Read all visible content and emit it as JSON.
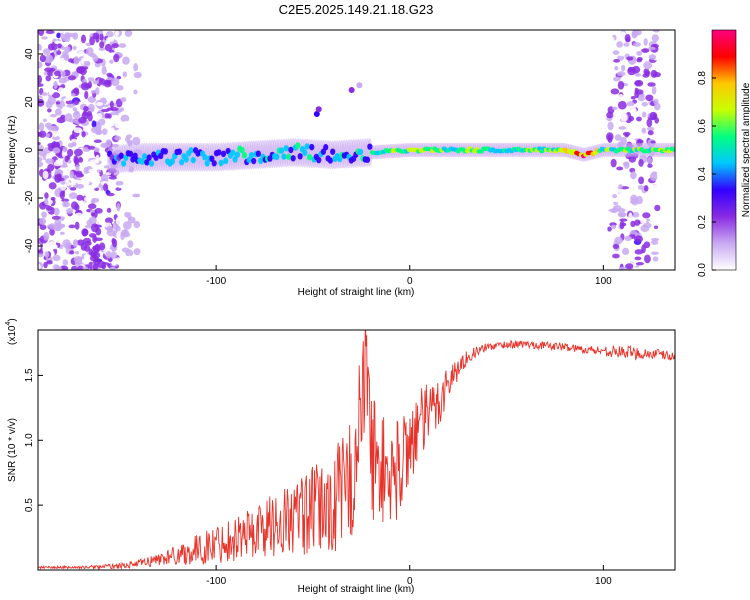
{
  "title": "C2E5.2025.149.21.18.G23",
  "colorbar": {
    "label": "Normalized spectral amplitude",
    "ticks": [
      "0.0",
      "0.2",
      "0.4",
      "0.6",
      "0.8"
    ],
    "tick_values": [
      0.0,
      0.2,
      0.4,
      0.6,
      0.8
    ],
    "range": [
      0.0,
      1.0
    ],
    "colors": [
      "#ffffff",
      "#c9a9f2",
      "#8a2be2",
      "#3300ff",
      "#00c8ff",
      "#00ff80",
      "#c8ff00",
      "#ffc800",
      "#ff0000",
      "#ff0080"
    ]
  },
  "chart_data": [
    {
      "type": "heatmap",
      "xlabel": "Height of straight line (km)",
      "ylabel": "Frequency (Hz)",
      "xlim": [
        -192,
        137
      ],
      "ylim": [
        -50,
        50
      ],
      "x_ticks": [
        "-100",
        "0",
        "100"
      ],
      "x_tick_values": [
        -100,
        0,
        100
      ],
      "y_ticks": [
        "-40",
        "-20",
        "0",
        "20",
        "40"
      ],
      "y_tick_values": [
        -40,
        -20,
        0,
        20,
        40
      ],
      "ridge": {
        "x": [
          -155,
          -140,
          -120,
          -100,
          -80,
          -60,
          -40,
          -20,
          0,
          20,
          40,
          60,
          80,
          90,
          100
        ],
        "freq": [
          -4,
          -3,
          -3,
          -3,
          -2,
          -1,
          -2,
          -1,
          0,
          0,
          0,
          0,
          0,
          -2,
          0
        ],
        "amplitude": [
          0.35,
          0.4,
          0.45,
          0.45,
          0.45,
          0.45,
          0.4,
          0.5,
          0.6,
          0.6,
          0.55,
          0.55,
          0.7,
          0.9,
          0.6
        ]
      }
    },
    {
      "type": "line",
      "xlabel": "Height of straight line (km)",
      "ylabel": "SNR (10 * v/v)",
      "y_multiplier": "(x10",
      "y_multiplier_exp": "4",
      "xlim": [
        -192,
        137
      ],
      "ylim": [
        0,
        1.85
      ],
      "x_ticks": [
        "-100",
        "0",
        "100"
      ],
      "x_tick_values": [
        -100,
        0,
        100
      ],
      "y_ticks": [
        "0.5",
        "1.0",
        "1.5"
      ],
      "y_tick_values": [
        0.5,
        1.0,
        1.5
      ],
      "color": "#e8332a",
      "series": [
        {
          "x": [
            -192,
            -170,
            -150,
            -140,
            -130,
            -120,
            -110,
            -100,
            -90,
            -80,
            -70,
            -60,
            -50,
            -40,
            -30,
            -25,
            -22,
            -20,
            -15,
            -10,
            -5,
            0,
            5,
            10,
            15,
            20,
            25,
            30,
            40,
            50,
            60,
            70,
            80,
            90,
            100,
            110,
            120,
            130,
            137
          ],
          "y": [
            0.02,
            0.02,
            0.03,
            0.05,
            0.08,
            0.12,
            0.15,
            0.2,
            0.25,
            0.3,
            0.35,
            0.4,
            0.45,
            0.5,
            0.7,
            1.2,
            1.6,
            0.9,
            0.8,
            0.7,
            0.8,
            1.0,
            1.1,
            1.2,
            1.3,
            1.45,
            1.55,
            1.65,
            1.72,
            1.74,
            1.74,
            1.73,
            1.72,
            1.7,
            1.69,
            1.68,
            1.67,
            1.66,
            1.64
          ],
          "spread": [
            0.01,
            0.01,
            0.02,
            0.03,
            0.05,
            0.08,
            0.12,
            0.15,
            0.18,
            0.22,
            0.25,
            0.3,
            0.35,
            0.4,
            0.5,
            0.55,
            0.55,
            0.5,
            0.45,
            0.4,
            0.4,
            0.35,
            0.3,
            0.25,
            0.22,
            0.15,
            0.08,
            0.05,
            0.03,
            0.03,
            0.03,
            0.03,
            0.03,
            0.03,
            0.04,
            0.05,
            0.05,
            0.04,
            0.03
          ]
        }
      ]
    }
  ]
}
